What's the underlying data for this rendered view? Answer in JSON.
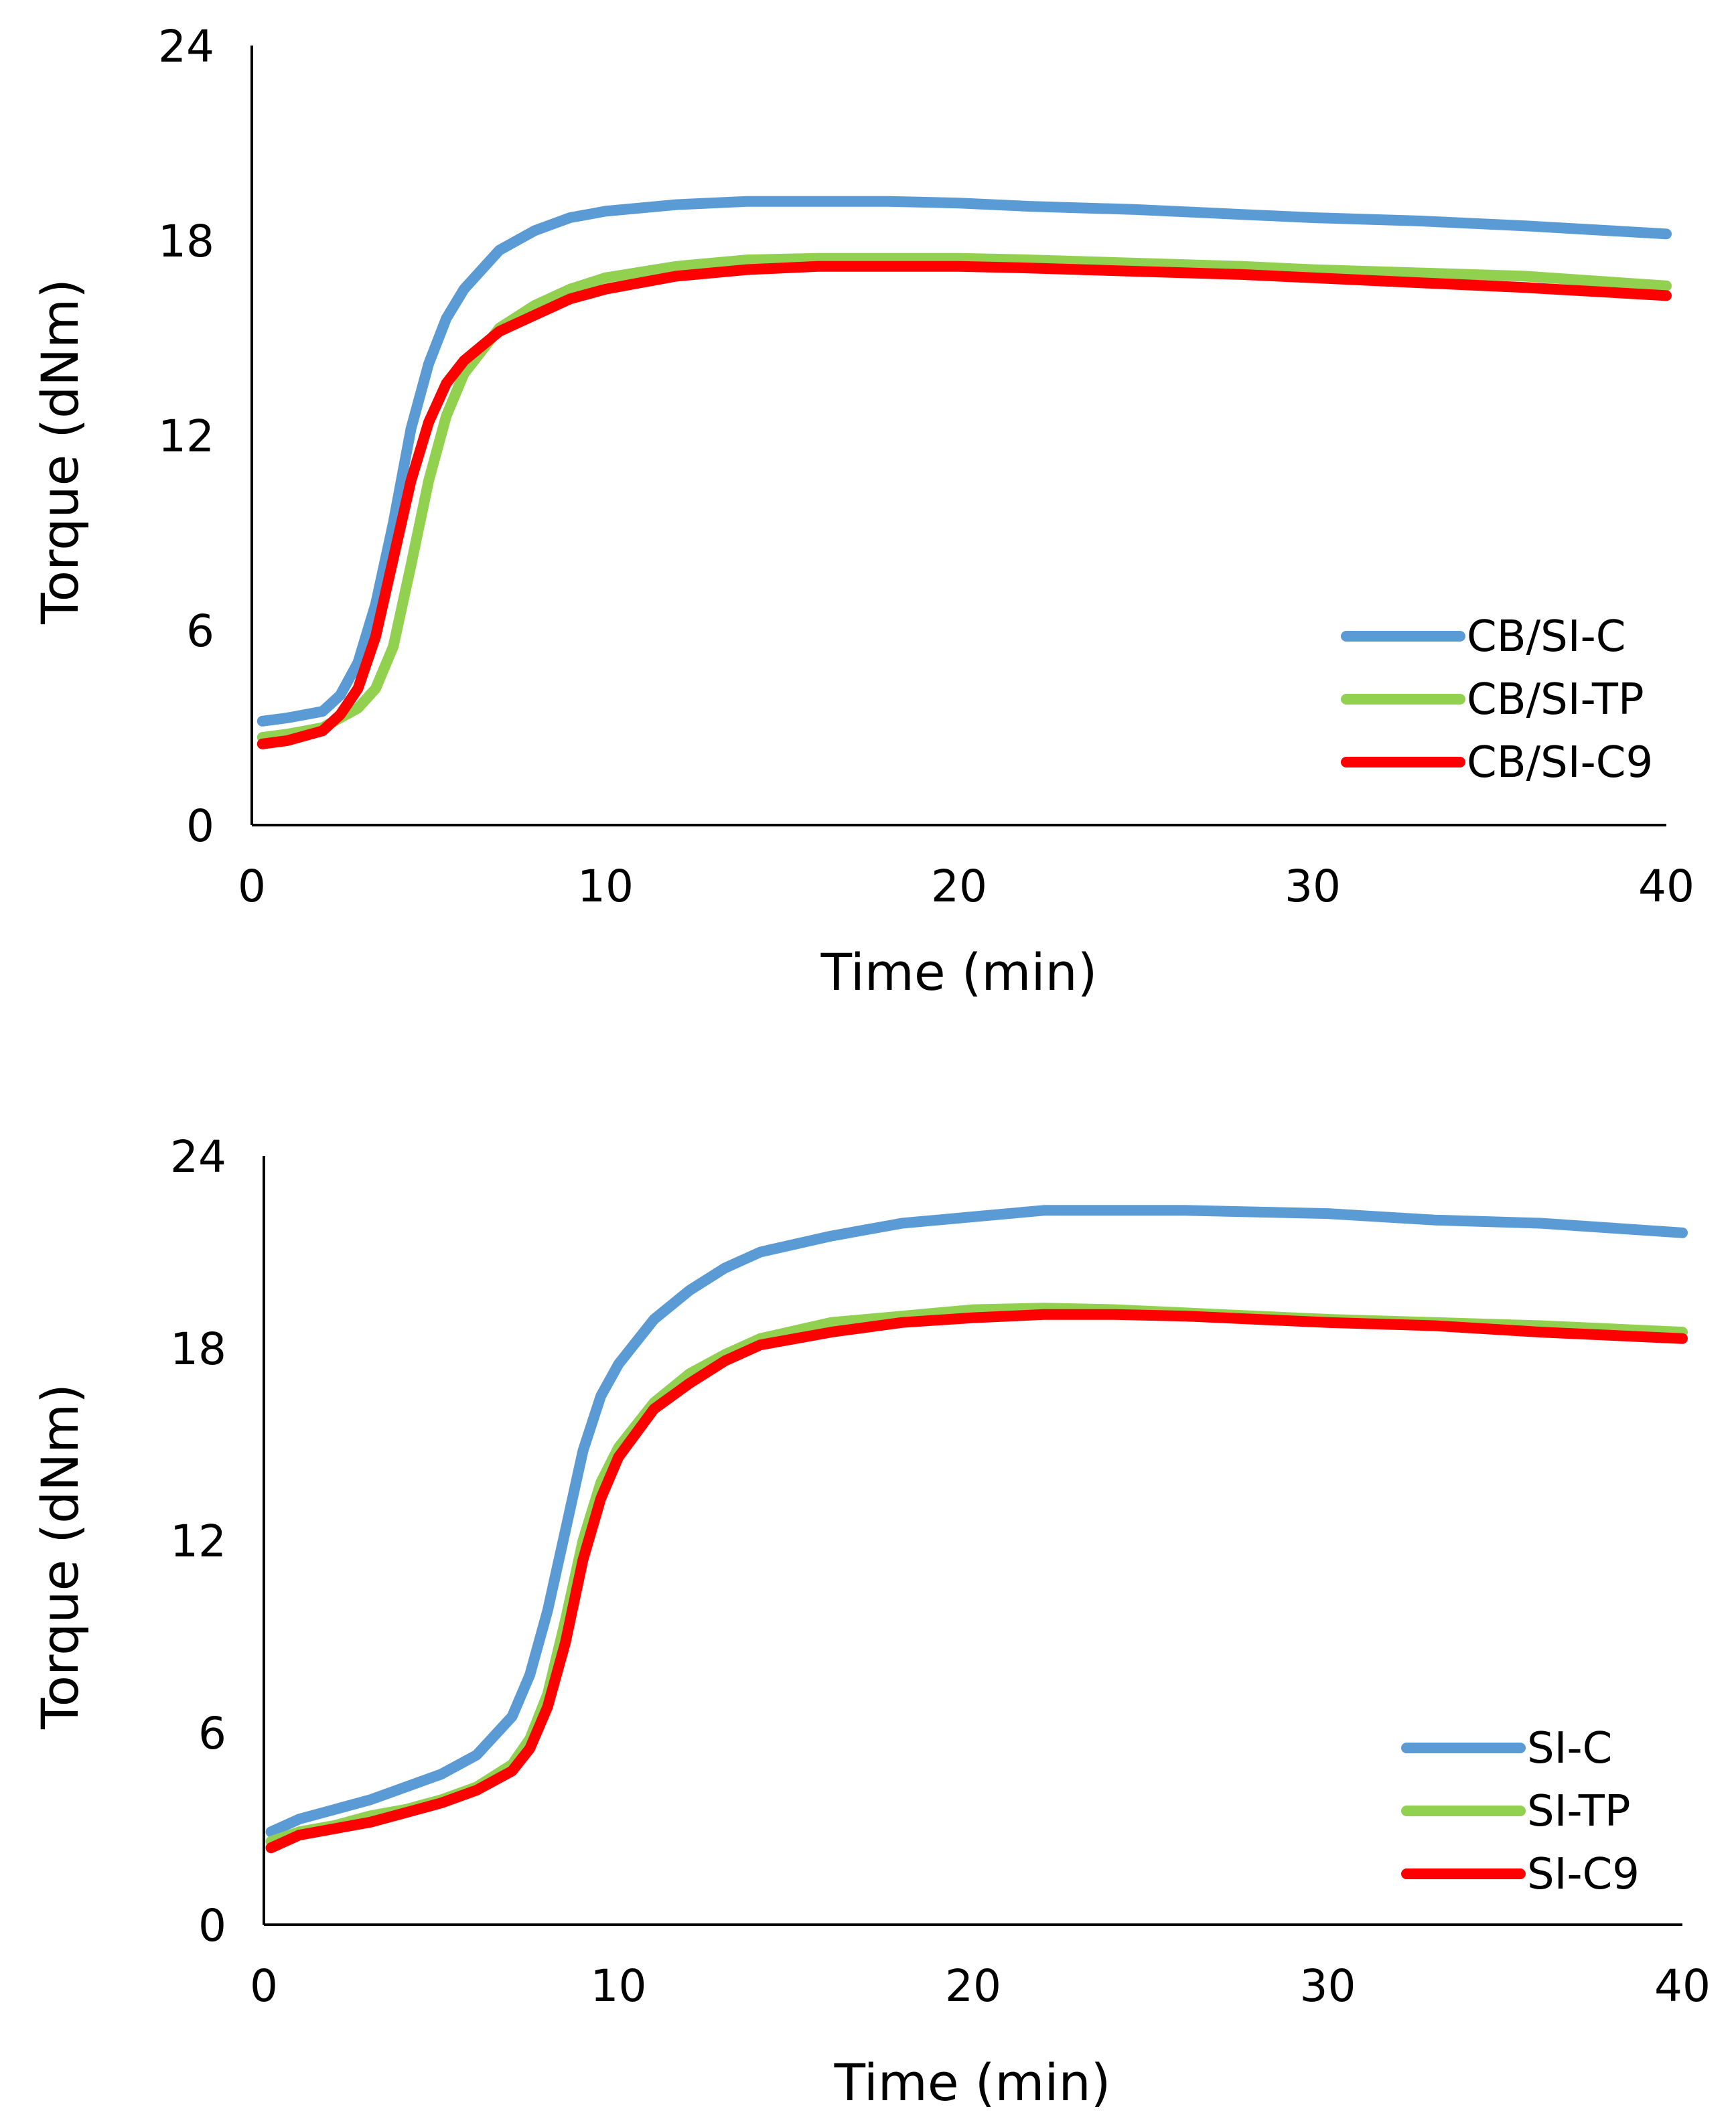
{
  "chart_data": [
    {
      "type": "line",
      "xlabel": "Time (min)",
      "ylabel": "Torque (dNm)",
      "xlim": [
        0,
        40
      ],
      "ylim": [
        0,
        24
      ],
      "xticks": [
        "0",
        "10",
        "20",
        "30",
        "40"
      ],
      "yticks": [
        "0",
        "6",
        "12",
        "18",
        "24"
      ],
      "legend_position": "bottom-right",
      "series": [
        {
          "name": "CB/SI-C",
          "color": "#5b9bd5",
          "x": [
            0.3,
            1,
            2,
            2.5,
            3,
            3.5,
            4,
            4.5,
            5,
            5.5,
            6,
            7,
            8,
            9,
            10,
            12,
            14,
            16,
            18,
            20,
            22,
            25,
            28,
            30,
            33,
            36,
            40
          ],
          "y": [
            3.2,
            3.3,
            3.5,
            4.0,
            5.0,
            6.8,
            9.3,
            12.2,
            14.2,
            15.6,
            16.5,
            17.7,
            18.3,
            18.7,
            18.9,
            19.1,
            19.2,
            19.2,
            19.2,
            19.15,
            19.05,
            18.95,
            18.8,
            18.7,
            18.6,
            18.45,
            18.2
          ]
        },
        {
          "name": "CB/SI-TP",
          "color": "#92d050",
          "x": [
            0.3,
            1,
            2,
            3,
            3.5,
            4,
            4.5,
            5,
            5.5,
            6,
            7,
            8,
            9,
            10,
            12,
            14,
            16,
            18,
            20,
            22,
            25,
            28,
            30,
            33,
            36,
            40
          ],
          "y": [
            2.7,
            2.8,
            3.0,
            3.6,
            4.2,
            5.5,
            8.0,
            10.6,
            12.6,
            13.9,
            15.3,
            16.0,
            16.5,
            16.85,
            17.2,
            17.4,
            17.45,
            17.45,
            17.45,
            17.4,
            17.3,
            17.2,
            17.1,
            17.0,
            16.9,
            16.6
          ]
        },
        {
          "name": "CB/SI-C9",
          "color": "#ff0000",
          "x": [
            0.3,
            1,
            2,
            2.5,
            3,
            3.5,
            4,
            4.5,
            5,
            5.5,
            6,
            7,
            8,
            9,
            10,
            12,
            14,
            16,
            18,
            20,
            22,
            25,
            28,
            30,
            33,
            36,
            40
          ],
          "y": [
            2.5,
            2.6,
            2.9,
            3.4,
            4.2,
            5.8,
            8.2,
            10.6,
            12.4,
            13.6,
            14.3,
            15.2,
            15.7,
            16.2,
            16.5,
            16.9,
            17.1,
            17.2,
            17.2,
            17.2,
            17.15,
            17.05,
            16.95,
            16.85,
            16.7,
            16.55,
            16.3
          ]
        }
      ]
    },
    {
      "type": "line",
      "xlabel": "Time (min)",
      "ylabel": "Torque (dNm)",
      "xlim": [
        0,
        40
      ],
      "ylim": [
        0,
        24
      ],
      "xticks": [
        "0",
        "10",
        "20",
        "30",
        "40"
      ],
      "yticks": [
        "0",
        "6",
        "12",
        "18",
        "24"
      ],
      "legend_position": "bottom-right",
      "series": [
        {
          "name": "SI-C",
          "color": "#5b9bd5",
          "x": [
            0.2,
            1,
            2,
            3,
            4,
            5,
            6,
            7,
            7.5,
            8,
            8.5,
            9,
            9.5,
            10,
            11,
            12,
            13,
            14,
            16,
            18,
            20,
            22,
            24,
            26,
            28,
            30,
            33,
            36,
            40
          ],
          "y": [
            2.9,
            3.3,
            3.6,
            3.9,
            4.3,
            4.7,
            5.3,
            6.5,
            7.8,
            9.8,
            12.3,
            14.8,
            16.5,
            17.5,
            18.9,
            19.8,
            20.5,
            21.0,
            21.5,
            21.9,
            22.1,
            22.3,
            22.3,
            22.3,
            22.25,
            22.2,
            22.0,
            21.9,
            21.6
          ]
        },
        {
          "name": "SI-TP",
          "color": "#92d050",
          "x": [
            0.2,
            1,
            2,
            3,
            4,
            5,
            6,
            7,
            7.5,
            8,
            8.5,
            9,
            9.5,
            10,
            11,
            12,
            13,
            14,
            16,
            18,
            20,
            22,
            24,
            26,
            28,
            30,
            33,
            36,
            40
          ],
          "y": [
            2.6,
            2.9,
            3.1,
            3.4,
            3.6,
            3.9,
            4.3,
            5.0,
            5.8,
            7.2,
            9.5,
            12.0,
            13.8,
            14.9,
            16.3,
            17.2,
            17.8,
            18.3,
            18.8,
            19.0,
            19.2,
            19.25,
            19.2,
            19.1,
            19.0,
            18.9,
            18.8,
            18.7,
            18.5
          ]
        },
        {
          "name": "SI-C9",
          "color": "#ff0000",
          "x": [
            0.2,
            1,
            2,
            3,
            4,
            5,
            6,
            7,
            7.5,
            8,
            8.5,
            9,
            9.5,
            10,
            11,
            12,
            13,
            14,
            16,
            18,
            20,
            22,
            24,
            26,
            28,
            30,
            33,
            36,
            40
          ],
          "y": [
            2.4,
            2.8,
            3.0,
            3.2,
            3.5,
            3.8,
            4.2,
            4.8,
            5.5,
            6.8,
            8.8,
            11.4,
            13.3,
            14.6,
            16.1,
            16.9,
            17.6,
            18.1,
            18.5,
            18.8,
            18.95,
            19.05,
            19.05,
            19.0,
            18.9,
            18.8,
            18.7,
            18.5,
            18.3
          ]
        }
      ]
    }
  ]
}
